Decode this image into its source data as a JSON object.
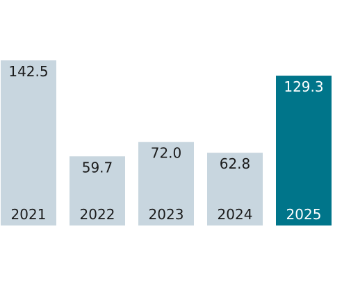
{
  "chart_data": {
    "type": "bar",
    "categories": [
      "2021",
      "2022",
      "2023",
      "2024",
      "2025"
    ],
    "values": [
      142.5,
      59.7,
      72.0,
      62.8,
      129.3
    ],
    "value_labels": [
      "142.5",
      "59.7",
      "72.0",
      "62.8",
      "129.3"
    ],
    "ylim": [
      0,
      142.5
    ],
    "grid": false,
    "legend": "none",
    "highlight_index": 4
  },
  "colors": {
    "bar": "#c8d6df",
    "highlight_bar": "#00758a",
    "text": "#1a1a1a",
    "highlight_text": "#ffffff"
  }
}
